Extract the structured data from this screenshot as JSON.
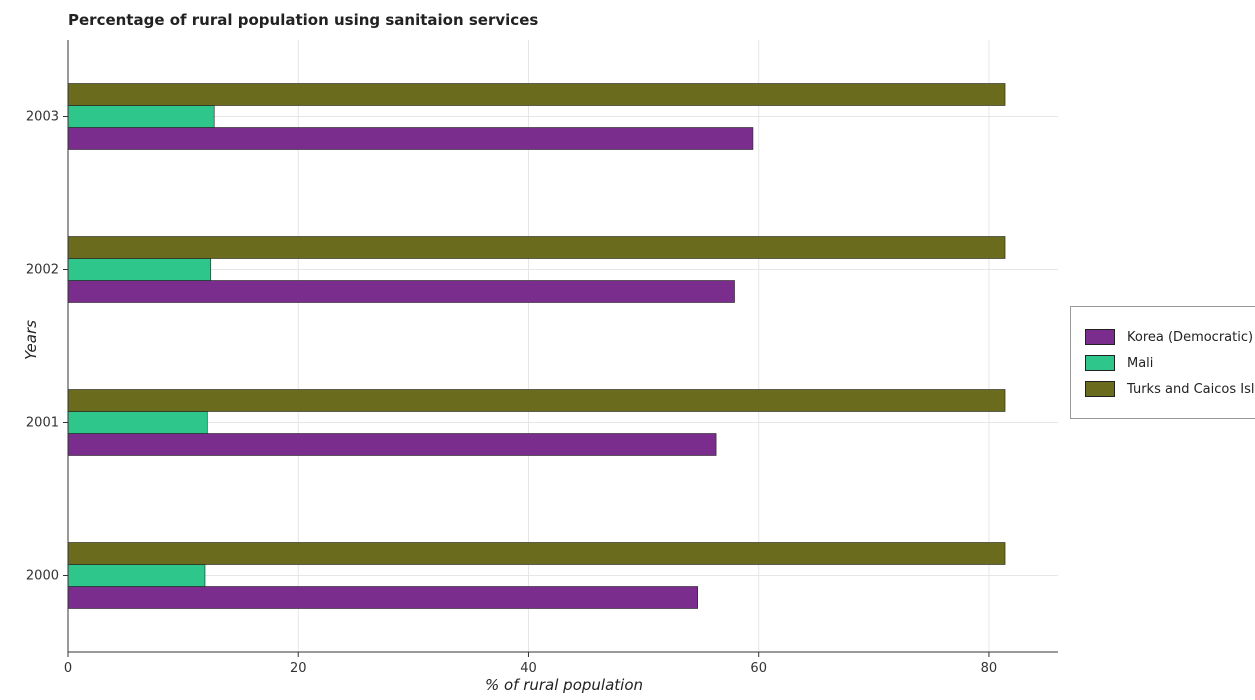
{
  "chart_data": {
    "type": "bar",
    "orientation": "horizontal",
    "title": "Percentage of rural population using sanitaion services",
    "xlabel": "% of rural population",
    "ylabel": "Years",
    "categories": [
      "2000",
      "2001",
      "2002",
      "2003"
    ],
    "xlim": [
      0,
      86
    ],
    "xticks": [
      0,
      20,
      40,
      60,
      80
    ],
    "grid": true,
    "legend_position": "right",
    "series": [
      {
        "name": "Korea (Democratic)",
        "color": "#7a2d8c",
        "values": [
          54.7,
          56.3,
          57.9,
          59.5
        ]
      },
      {
        "name": "Mali",
        "color": "#2ec68a",
        "values": [
          11.9,
          12.1,
          12.4,
          12.7
        ]
      },
      {
        "name": "Turks and Caicos Islands",
        "color": "#6b6b1e",
        "values": [
          81.4,
          81.4,
          81.4,
          81.4
        ]
      }
    ]
  }
}
